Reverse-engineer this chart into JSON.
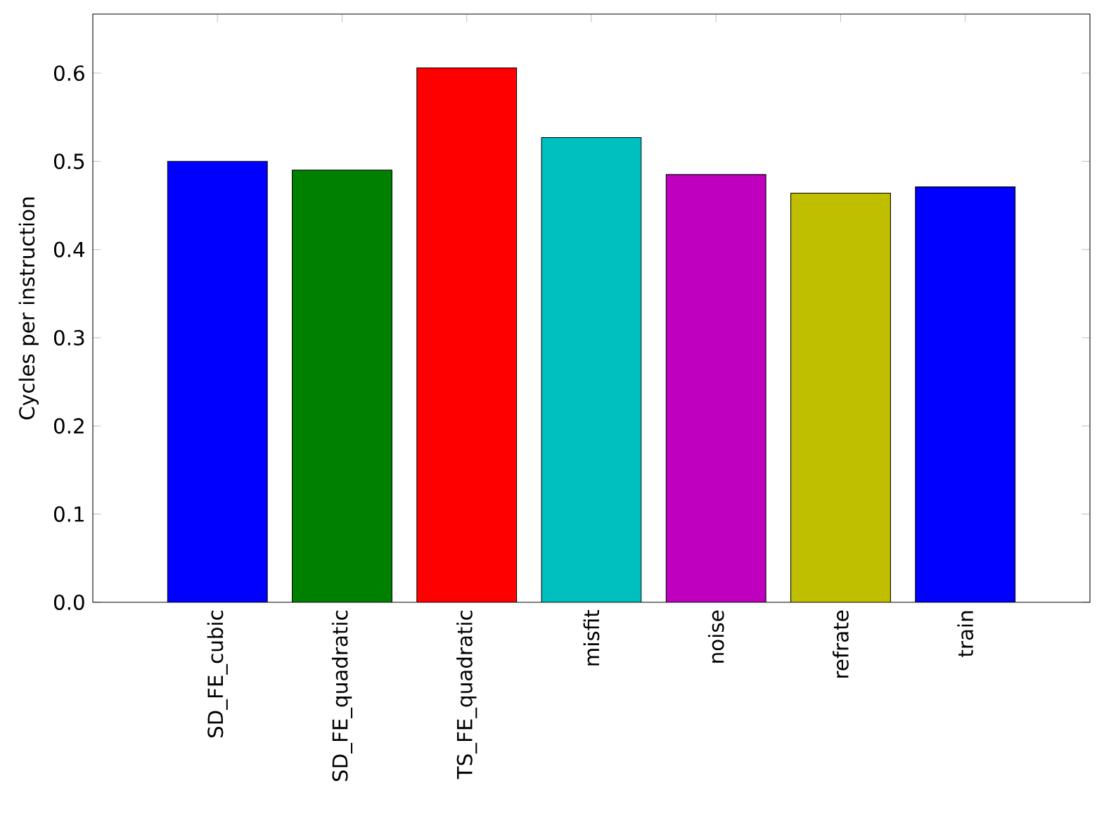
{
  "chart_data": {
    "type": "bar",
    "ylabel": "Cycles per instruction",
    "categories": [
      "SD_FE_cubic",
      "SD_FE_quadratic",
      "TS_FE_quadratic",
      "misfit",
      "noise",
      "refrate",
      "train"
    ],
    "values": [
      0.5,
      0.49,
      0.606,
      0.527,
      0.485,
      0.464,
      0.471
    ],
    "colors": [
      "#0000ff",
      "#008000",
      "#ff0000",
      "#00bfbf",
      "#bf00bf",
      "#bfbf00",
      "#0000ff"
    ],
    "ylim": [
      0,
      0.667
    ],
    "yticks": [
      {
        "value": 0,
        "label": "0.0"
      },
      {
        "value": 0.1,
        "label": "0.1"
      },
      {
        "value": 0.2,
        "label": "0.2"
      },
      {
        "value": 0.3,
        "label": "0.3"
      },
      {
        "value": 0.4,
        "label": "0.4"
      },
      {
        "value": 0.5,
        "label": "0.5"
      },
      {
        "value": 0.6,
        "label": "0.6"
      }
    ]
  }
}
